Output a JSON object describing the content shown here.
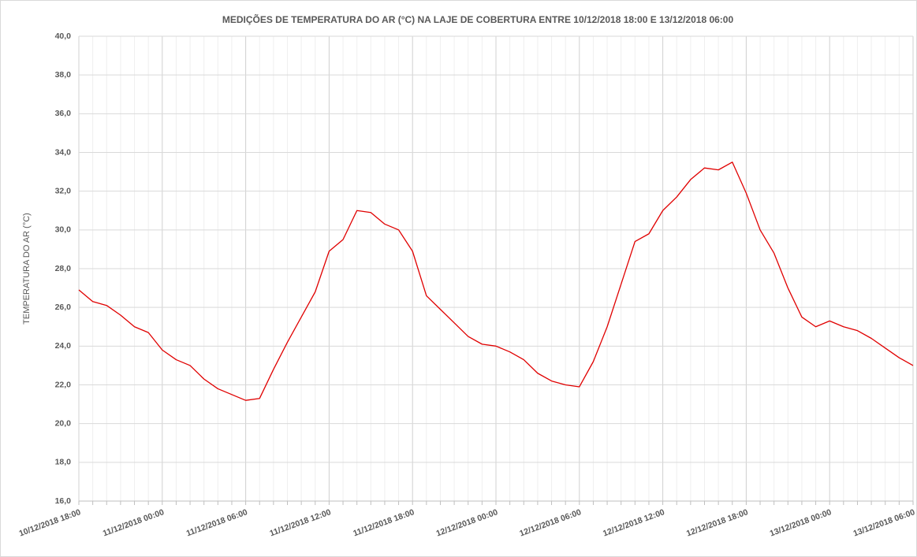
{
  "chart_data": {
    "type": "line",
    "title": "MEDIÇÕES DE TEMPERATURA DO AR (°C) NA LAJE DE COBERTURA ENTRE 10/12/2018 18:00 E 13/12/2018 06:00",
    "y_label": "TEMPERATURA DO AR (°C)",
    "categories": [
      "10/12/2018 18:00",
      null,
      null,
      null,
      null,
      null,
      "11/12/2018 00:00",
      null,
      null,
      null,
      null,
      null,
      "11/12/2018 06:00",
      null,
      null,
      null,
      null,
      null,
      "11/12/2018 12:00",
      null,
      null,
      null,
      null,
      null,
      "11/12/2018 18:00",
      null,
      null,
      null,
      null,
      null,
      "12/12/2018 00:00",
      null,
      null,
      null,
      null,
      null,
      "12/12/2018 06:00",
      null,
      null,
      null,
      null,
      null,
      "12/12/2018 12:00",
      null,
      null,
      null,
      null,
      null,
      "12/12/2018 18:00",
      null,
      null,
      null,
      null,
      null,
      "13/12/2018 00:00",
      null,
      null,
      null,
      null,
      null,
      "13/12/2018 06:00"
    ],
    "series": [
      {
        "name": "TEMPERATURA DO AR (°C)",
        "color": "#e00000",
        "values": [
          26.9,
          26.3,
          26.1,
          25.6,
          25.0,
          24.7,
          23.8,
          23.3,
          23.0,
          22.3,
          21.8,
          21.5,
          21.2,
          21.3,
          22.8,
          24.2,
          25.5,
          26.8,
          28.9,
          29.5,
          31.0,
          30.9,
          30.3,
          30.0,
          28.9,
          26.6,
          25.9,
          25.2,
          24.5,
          24.1,
          24.0,
          23.7,
          23.3,
          22.6,
          22.2,
          22.0,
          21.9,
          23.2,
          25.0,
          27.2,
          29.4,
          29.8,
          31.0,
          31.7,
          32.6,
          33.2,
          33.1,
          33.5,
          31.9,
          30.0,
          28.8,
          27.0,
          25.5,
          25.0,
          25.3,
          25.0,
          24.8,
          24.4,
          23.9,
          23.4,
          23.0
        ]
      }
    ],
    "ylim": [
      16,
      40
    ],
    "yticks": [
      {
        "value": 16,
        "label": "16,0"
      },
      {
        "value": 18,
        "label": "18,0"
      },
      {
        "value": 20,
        "label": "20,0"
      },
      {
        "value": 22,
        "label": "22,0"
      },
      {
        "value": 24,
        "label": "24,0"
      },
      {
        "value": 26,
        "label": "26,0"
      },
      {
        "value": 28,
        "label": "28,0"
      },
      {
        "value": 30,
        "label": "30,0"
      },
      {
        "value": 32,
        "label": "32,0"
      },
      {
        "value": 34,
        "label": "34,0"
      },
      {
        "value": 36,
        "label": "36,0"
      },
      {
        "value": 38,
        "label": "38,0"
      },
      {
        "value": 40,
        "label": "40,0"
      }
    ],
    "grid": true
  }
}
